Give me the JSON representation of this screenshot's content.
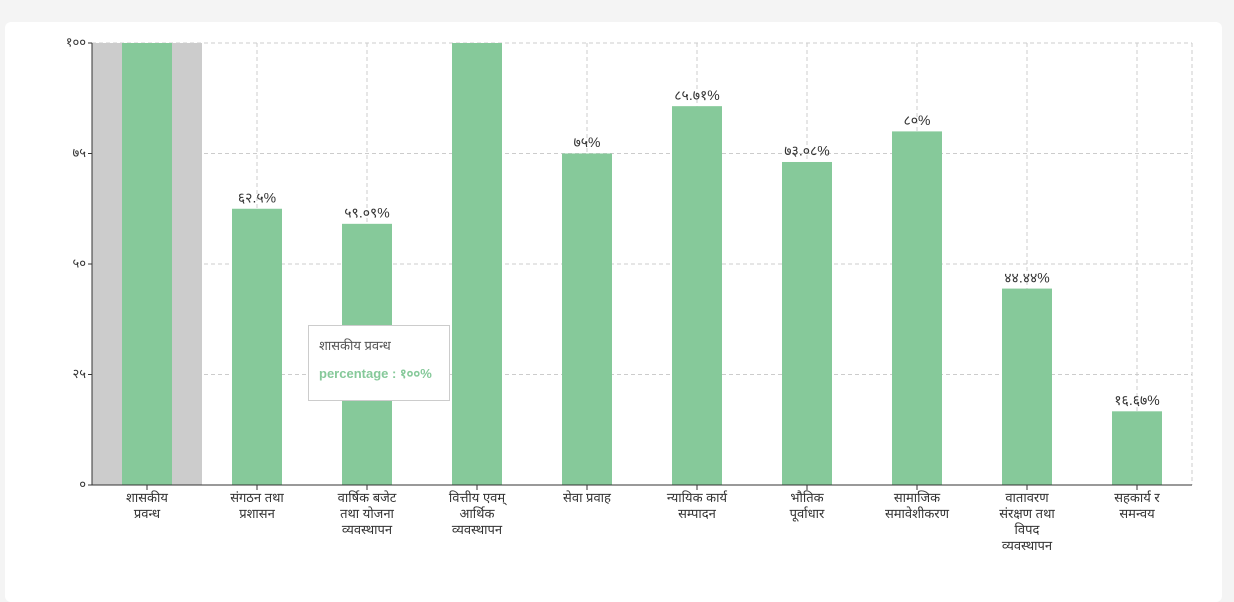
{
  "chart_data": {
    "type": "bar",
    "categories": [
      "शासकीय\nप्रवन्ध",
      "संगठन तथा\nप्रशासन",
      "वार्षिक बजेट\nतथा योजना\nव्यवस्थापन",
      "वित्तीय एवम्\nआर्थिक\nव्यवस्थापन",
      "सेवा प्रवाह",
      "न्यायिक कार्य\nसम्पादन",
      "भौतिक\nपूर्वाधार",
      "सामाजिक\nसमावेशीकरण",
      "वातावरण\nसंरक्षण तथा\nविपद\nव्यवस्थापन",
      "सहकार्य र\nसमन्वय"
    ],
    "values": [
      100,
      62.5,
      59.09,
      100,
      75,
      85.71,
      73.08,
      80,
      44.44,
      16.67
    ],
    "value_labels": [
      null,
      "६२.५%",
      "५९.०९%",
      null,
      "७५%",
      "८५.७१%",
      "७३.०८%",
      "८०%",
      "४४.४४%",
      "१६.६७%"
    ],
    "color": "#86c99a",
    "ylim": [
      0,
      100
    ],
    "yticks": [
      {
        "value": 0,
        "label": "०"
      },
      {
        "value": 25,
        "label": "२५"
      },
      {
        "value": 50,
        "label": "५०"
      },
      {
        "value": 75,
        "label": "७५"
      },
      {
        "value": 100,
        "label": "१००"
      }
    ],
    "grid": true,
    "tooltip": {
      "title": "शासकीय प्रवन्ध",
      "text": "percentage : १००%"
    }
  }
}
